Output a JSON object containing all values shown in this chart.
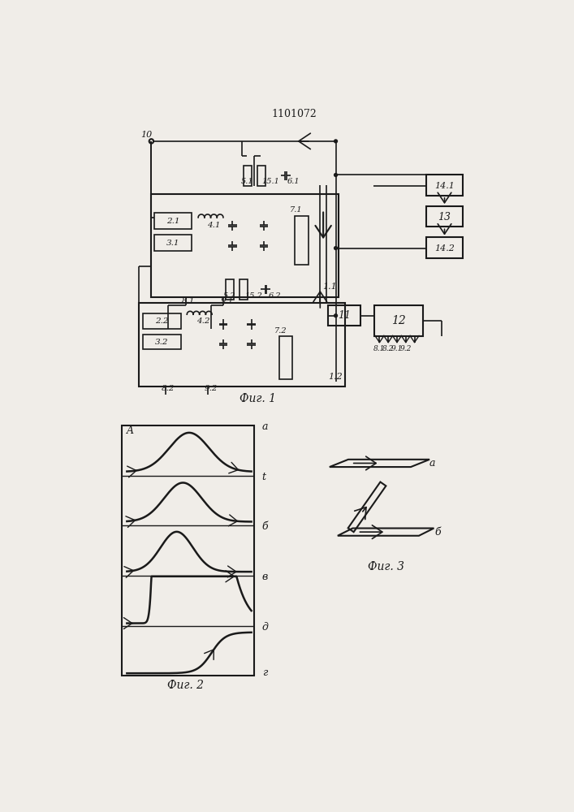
{
  "title": "1101072",
  "fig1_label": "Фиг. 1",
  "fig2_label": "Фиг. 2",
  "fig3_label": "Фиг. 3",
  "bg_color": "#f0ede8",
  "line_color": "#1a1a1a",
  "curve_labels_fig2": [
    "а",
    "t",
    "б",
    "в",
    "д",
    "г"
  ],
  "fig2_A_label": "A",
  "fig3_labels": [
    "а",
    "б"
  ]
}
